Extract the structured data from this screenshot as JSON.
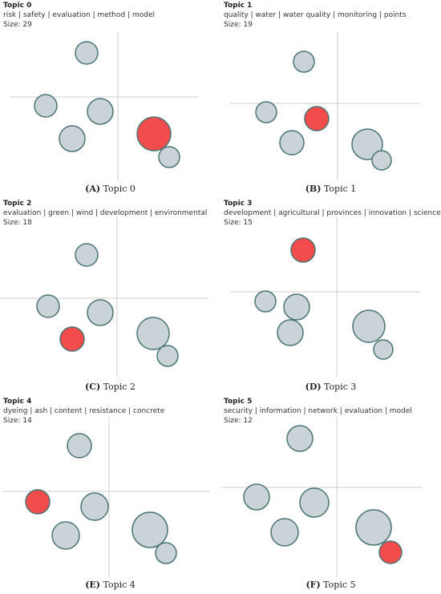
{
  "colors": {
    "bubble": "#c9d3d8",
    "bubble_stroke": "#4a7573",
    "highlight": "#f24c4c",
    "axis": "#cccccc"
  },
  "chart_data": [
    {
      "type": "scatter",
      "title": "Topic 0",
      "subtitle": "risk | safety | evaluation | method | model",
      "size_label": "Size: 29",
      "panel_letter": "(A)",
      "caption": "Topic 0",
      "highlight_index": 5
    },
    {
      "type": "scatter",
      "title": "Topic 1",
      "subtitle": "quality | water | water quality | monitoring | points",
      "size_label": "Size: 19",
      "panel_letter": "(B)",
      "caption": "Topic 1",
      "highlight_index": 5
    },
    {
      "type": "scatter",
      "title": "Topic 2",
      "subtitle": "evaluation | green | wind | development | environmental",
      "size_label": "Size: 18",
      "panel_letter": "(C)",
      "caption": "Topic 2",
      "highlight_index": 5
    },
    {
      "type": "scatter",
      "title": "Topic 3",
      "subtitle": "development | agricultural | provinces | innovation | science technology",
      "size_label": "Size: 15",
      "panel_letter": "(D)",
      "caption": "Topic 3",
      "highlight_index": 5
    },
    {
      "type": "scatter",
      "title": "Topic 4",
      "subtitle": "dyeing | ash | content | resistance | concrete",
      "size_label": "Size: 14",
      "panel_letter": "(E)",
      "caption": "Topic 4",
      "highlight_index": 5
    },
    {
      "type": "scatter",
      "title": "Topic 5",
      "subtitle": "security | information | network | evaluation | model",
      "size_label": "Size: 12",
      "panel_letter": "(F)",
      "caption": "Topic 5",
      "highlight_index": 5
    }
  ]
}
